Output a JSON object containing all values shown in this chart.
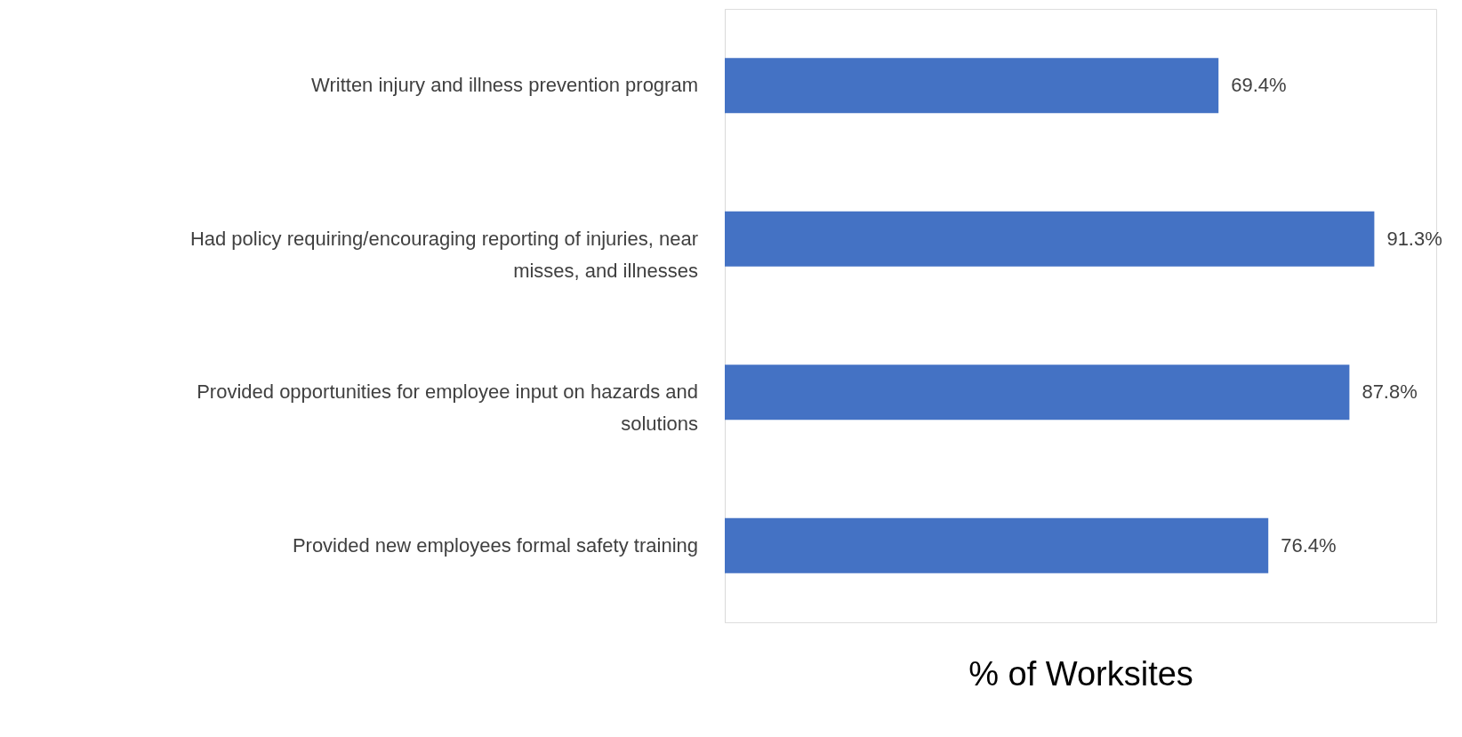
{
  "chart_data": {
    "type": "bar",
    "orientation": "horizontal",
    "xlabel": "% of Worksites",
    "categories": [
      "Written injury and illness prevention program",
      "Had policy requiring/encouraging reporting of injuries, near misses, and illnesses",
      "Provided opportunities for employee input on hazards and solutions",
      "Provided new employees formal safety training"
    ],
    "values": [
      69.4,
      91.3,
      87.8,
      76.4
    ],
    "value_labels": [
      "69.4%",
      "91.3%",
      "87.8%",
      "76.4%"
    ],
    "color": "#4472c4"
  }
}
